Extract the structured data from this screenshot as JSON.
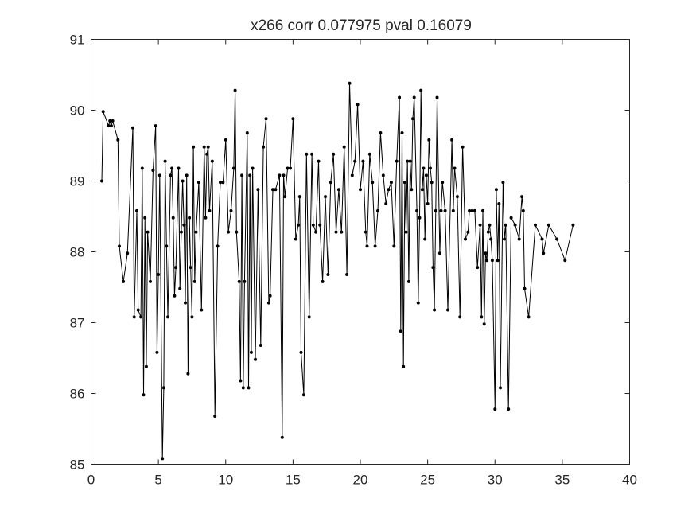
{
  "chart_data": {
    "type": "line",
    "title": "x266 corr 0.077975 pval 0.16079",
    "xlabel": "",
    "ylabel": "",
    "xlim": [
      0,
      40
    ],
    "ylim": [
      85,
      91
    ],
    "xticks": [
      "0",
      "5",
      "10",
      "15",
      "20",
      "25",
      "30",
      "35",
      "40"
    ],
    "yticks": [
      "85",
      "86",
      "87",
      "88",
      "89",
      "90",
      "91"
    ],
    "grid": false,
    "marker": "dot",
    "colors": {
      "line": "#000000",
      "axes": "#262626",
      "background": "#ffffff"
    },
    "series": [
      {
        "x": [
          0.8,
          0.9,
          1.3,
          1.4,
          1.5,
          1.6,
          2.0,
          2.1,
          2.4,
          2.7,
          3.1,
          3.2,
          3.4,
          3.5,
          3.7,
          3.8,
          3.9,
          4.0,
          4.1,
          4.2,
          4.4,
          4.6,
          4.8,
          4.9,
          5.0,
          5.1,
          5.3,
          5.4,
          5.5,
          5.6,
          5.7,
          5.9,
          6.0,
          6.1,
          6.2,
          6.3,
          6.5,
          6.6,
          6.7,
          6.8,
          6.9,
          7.0,
          7.1,
          7.2,
          7.3,
          7.4,
          7.5,
          7.6,
          7.7,
          7.8,
          8.0,
          8.2,
          8.4,
          8.5,
          8.6,
          8.7,
          8.8,
          9.0,
          9.2,
          9.4,
          9.6,
          9.8,
          10.0,
          10.2,
          10.4,
          10.6,
          10.7,
          10.8,
          11.0,
          11.1,
          11.2,
          11.3,
          11.4,
          11.6,
          11.7,
          11.8,
          11.9,
          12.0,
          12.2,
          12.4,
          12.6,
          12.8,
          13.0,
          13.2,
          13.3,
          13.5,
          13.7,
          14.0,
          14.2,
          14.3,
          14.4,
          14.6,
          14.8,
          15.0,
          15.2,
          15.4,
          15.5,
          15.6,
          15.8,
          16.0,
          16.2,
          16.4,
          16.5,
          16.7,
          16.9,
          17.0,
          17.2,
          17.4,
          17.6,
          17.8,
          18.0,
          18.2,
          18.4,
          18.6,
          18.8,
          19.0,
          19.2,
          19.4,
          19.6,
          19.8,
          20.0,
          20.2,
          20.4,
          20.5,
          20.7,
          20.9,
          21.1,
          21.3,
          21.5,
          21.7,
          21.9,
          22.1,
          22.3,
          22.5,
          22.7,
          22.9,
          23.0,
          23.1,
          23.2,
          23.3,
          23.4,
          23.5,
          23.6,
          23.7,
          23.8,
          23.9,
          24.0,
          24.2,
          24.3,
          24.4,
          24.5,
          24.6,
          24.7,
          24.8,
          24.9,
          25.0,
          25.1,
          25.2,
          25.3,
          25.4,
          25.5,
          25.6,
          25.7,
          25.9,
          26.0,
          26.1,
          26.3,
          26.5,
          26.8,
          26.9,
          27.0,
          27.2,
          27.4,
          27.6,
          27.8,
          28.0,
          28.1,
          28.3,
          28.5,
          28.7,
          28.9,
          29.0,
          29.1,
          29.2,
          29.3,
          29.4,
          29.5,
          29.6,
          29.7,
          29.8,
          30.0,
          30.1,
          30.2,
          30.3,
          30.4,
          30.6,
          30.7,
          30.8,
          31.0,
          31.2,
          31.5,
          31.8,
          32.0,
          32.1,
          32.2,
          32.5,
          33.0,
          33.5,
          33.6,
          34.0,
          34.6,
          35.2,
          35.8
        ],
        "y": [
          89.0,
          89.98,
          89.78,
          89.85,
          89.78,
          89.85,
          89.58,
          88.08,
          87.58,
          87.98,
          89.75,
          87.08,
          88.58,
          87.18,
          87.08,
          89.18,
          85.98,
          88.48,
          86.38,
          88.28,
          87.58,
          89.15,
          89.78,
          86.58,
          87.68,
          89.08,
          85.08,
          86.08,
          89.28,
          88.08,
          87.08,
          89.08,
          89.18,
          88.48,
          87.38,
          87.78,
          89.18,
          87.48,
          88.28,
          89.0,
          88.38,
          87.28,
          89.08,
          86.28,
          88.48,
          87.78,
          87.08,
          89.48,
          87.58,
          88.28,
          88.98,
          87.18,
          89.48,
          88.48,
          89.38,
          89.48,
          88.58,
          89.28,
          85.68,
          88.08,
          88.98,
          88.98,
          89.58,
          88.28,
          88.58,
          89.18,
          90.28,
          88.28,
          87.58,
          86.18,
          89.08,
          86.08,
          87.58,
          89.68,
          86.08,
          89.08,
          86.58,
          89.18,
          86.48,
          88.88,
          86.68,
          89.48,
          89.88,
          87.28,
          87.38,
          88.88,
          88.88,
          89.08,
          85.38,
          89.08,
          88.78,
          89.18,
          89.18,
          89.88,
          88.18,
          88.38,
          88.78,
          86.58,
          85.98,
          89.38,
          87.08,
          89.38,
          88.38,
          88.28,
          89.28,
          88.38,
          87.58,
          88.78,
          87.68,
          88.98,
          89.38,
          88.28,
          88.88,
          88.28,
          89.48,
          87.68,
          90.38,
          89.08,
          89.28,
          90.08,
          88.88,
          89.28,
          88.28,
          88.08,
          89.38,
          88.98,
          88.08,
          88.58,
          89.68,
          89.08,
          88.68,
          88.88,
          88.98,
          88.08,
          89.28,
          90.18,
          86.88,
          89.68,
          86.38,
          88.98,
          88.28,
          89.28,
          87.58,
          89.28,
          88.88,
          89.88,
          90.18,
          88.58,
          87.28,
          88.48,
          90.28,
          88.88,
          89.18,
          88.18,
          89.08,
          88.68,
          89.58,
          89.18,
          88.98,
          87.78,
          87.18,
          88.58,
          90.18,
          87.98,
          88.58,
          88.98,
          88.58,
          87.18,
          89.58,
          88.58,
          89.18,
          88.78,
          87.08,
          89.48,
          88.18,
          88.28,
          88.58,
          88.58,
          88.58,
          87.78,
          88.38,
          87.08,
          88.58,
          86.98,
          87.98,
          87.88,
          88.28,
          88.38,
          88.18,
          87.88,
          85.78,
          88.88,
          87.88,
          88.68,
          86.08,
          88.98,
          88.18,
          88.38,
          85.78,
          88.48,
          88.38,
          88.18,
          88.78,
          88.58,
          87.48,
          87.08,
          88.38,
          88.18,
          87.98,
          88.38,
          88.18,
          87.88,
          88.38
        ]
      }
    ]
  }
}
